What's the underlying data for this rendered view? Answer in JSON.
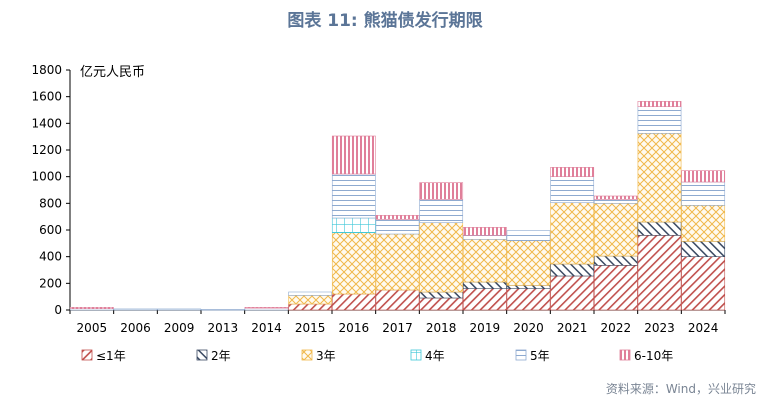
{
  "title": "图表 11: 熊猫债发行期限",
  "source": "资料来源：Wind，兴业研究",
  "chart_data": {
    "type": "bar",
    "stacked": true,
    "unit_label": "亿元人民币",
    "categories": [
      "2005",
      "2006",
      "2009",
      "2013",
      "2014",
      "2015",
      "2016",
      "2017",
      "2018",
      "2019",
      "2020",
      "2021",
      "2022",
      "2023",
      "2024"
    ],
    "ylim": [
      0,
      1800
    ],
    "yticks": [
      0,
      200,
      400,
      600,
      800,
      1000,
      1200,
      1400,
      1600,
      1800
    ],
    "grid": false,
    "legend_position": "bottom",
    "series": [
      {
        "name": "≤1年",
        "color": "#c0504d",
        "pattern": "hatch-red",
        "values": [
          0,
          0,
          0,
          0,
          0,
          45,
          120,
          150,
          90,
          160,
          160,
          255,
          335,
          560,
          400
        ]
      },
      {
        "name": "2年",
        "color": "#3b4a63",
        "pattern": "hatch-navy",
        "values": [
          0,
          0,
          0,
          0,
          0,
          0,
          0,
          0,
          45,
          50,
          25,
          90,
          70,
          100,
          115
        ]
      },
      {
        "name": "3年",
        "color": "#f0b84a",
        "pattern": "crosshatch",
        "values": [
          0,
          0,
          0,
          0,
          0,
          65,
          460,
          420,
          520,
          320,
          335,
          460,
          395,
          665,
          270
        ]
      },
      {
        "name": "4年",
        "color": "#3fc8d8",
        "pattern": "grid",
        "values": [
          0,
          0,
          0,
          0,
          0,
          0,
          110,
          0,
          0,
          0,
          0,
          0,
          0,
          0,
          0
        ]
      },
      {
        "name": "5年",
        "color": "#8eaad0",
        "pattern": "hlines",
        "values": [
          10,
          8,
          8,
          5,
          15,
          25,
          330,
          110,
          175,
          30,
          75,
          195,
          30,
          200,
          175
        ]
      },
      {
        "name": "6-10年",
        "color": "#e07f9a",
        "pattern": "vlines",
        "values": [
          10,
          0,
          0,
          0,
          5,
          0,
          285,
          30,
          125,
          60,
          0,
          70,
          25,
          40,
          85
        ]
      }
    ]
  }
}
